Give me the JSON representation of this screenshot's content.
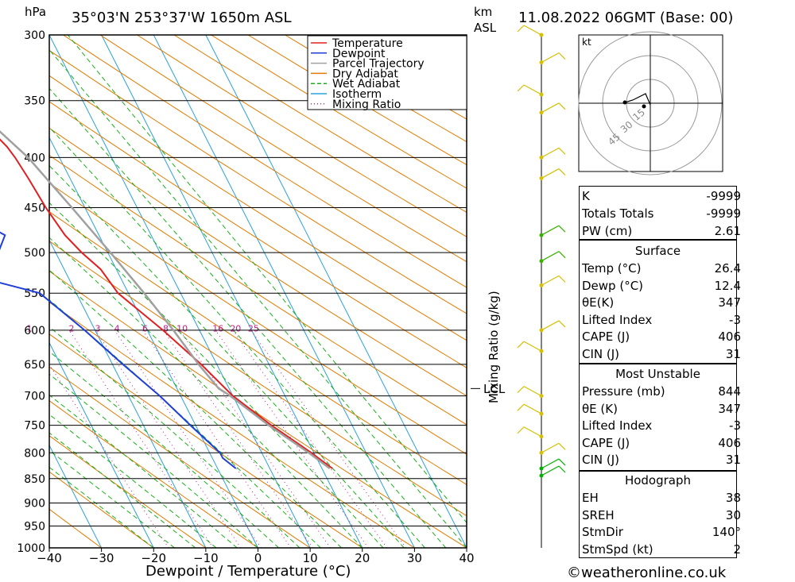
{
  "header": {
    "units_hpa": "hPa",
    "location": "35°03'N 253°37'W 1650m ASL",
    "units_km": "km",
    "units_asl": "ASL",
    "valid_time": "11.08.2022 06GMT (Base: 00)"
  },
  "chart_data": {
    "type": "line",
    "subtype": "skew-t log-p",
    "xlabel": "Dewpoint / Temperature (°C)",
    "ylabel": "hPa",
    "right_axis_label": "Mixing Ratio (g/kg)",
    "xlim": [
      -40,
      40
    ],
    "ylim": [
      1000,
      300
    ],
    "y_scale": "log",
    "x_ticks": [
      -40,
      -30,
      -20,
      -10,
      0,
      10,
      20,
      30,
      40
    ],
    "x_tick_labels": [
      "−40",
      "−30",
      "−20",
      "−10",
      "0",
      "10",
      "20",
      "30",
      "40"
    ],
    "pressure_levels": [
      300,
      350,
      400,
      450,
      500,
      550,
      600,
      650,
      700,
      750,
      800,
      850,
      900,
      950,
      1000
    ],
    "pressure_labels": [
      "300",
      "350",
      "400",
      "450",
      "500",
      "550",
      "600",
      "650",
      "700",
      "750",
      "800",
      "850",
      "900",
      "950",
      "1000"
    ],
    "mixing_ratio_labels": [
      "1",
      "2",
      "3",
      "4",
      "6",
      "8",
      "10",
      "16",
      "20",
      "25"
    ],
    "lcl_label": "LCL",
    "legend": {
      "placement": "top-center",
      "entries": [
        {
          "name": "Temperature",
          "color": "#e02020"
        },
        {
          "name": "Dewpoint",
          "color": "#1f3fd6"
        },
        {
          "name": "Parcel Trajectory",
          "color": "#a0a0a0"
        },
        {
          "name": "Dry Adiabat",
          "color": "#e07b00"
        },
        {
          "name": "Wet Adiabat",
          "color": "#18b018"
        },
        {
          "name": "Isotherm",
          "color": "#2aa0e0"
        },
        {
          "name": "Mixing Ratio",
          "color": "#c0208a"
        }
      ]
    },
    "series": [
      {
        "name": "Temperature",
        "color": "#e02020",
        "points": [
          [
            300,
            -21
          ],
          [
            310,
            -19
          ],
          [
            320,
            -17
          ],
          [
            330,
            -15
          ],
          [
            340,
            -14
          ],
          [
            350,
            -13
          ],
          [
            370,
            -11
          ],
          [
            390,
            -9
          ],
          [
            400,
            -8.5
          ],
          [
            420,
            -8
          ],
          [
            450,
            -7.5
          ],
          [
            480,
            -6.5
          ],
          [
            500,
            -5
          ],
          [
            520,
            -3
          ],
          [
            550,
            -2
          ],
          [
            600,
            3
          ],
          [
            650,
            7
          ],
          [
            700,
            10
          ],
          [
            750,
            14.5
          ],
          [
            800,
            19.5
          ],
          [
            830,
            22
          ]
        ]
      },
      {
        "name": "Dewpoint",
        "color": "#1f3fd6",
        "points": [
          [
            300,
            -27
          ],
          [
            310,
            -31
          ],
          [
            325,
            -23
          ],
          [
            335,
            -29
          ],
          [
            350,
            -22
          ],
          [
            360,
            -26
          ],
          [
            380,
            -20
          ],
          [
            400,
            -18
          ],
          [
            430,
            -28
          ],
          [
            450,
            -25
          ],
          [
            480,
            -18
          ],
          [
            500,
            -21
          ],
          [
            530,
            -27
          ],
          [
            550,
            -17
          ],
          [
            600,
            -12
          ],
          [
            650,
            -8
          ],
          [
            700,
            -4
          ],
          [
            750,
            -1
          ],
          [
            800,
            2
          ],
          [
            810,
            2
          ],
          [
            830,
            3.5
          ]
        ]
      },
      {
        "name": "Parcel Trajectory",
        "color": "#a0a0a0",
        "points": [
          [
            360,
            -11
          ],
          [
            400,
            -6
          ],
          [
            450,
            -2.5
          ],
          [
            500,
            0.5
          ],
          [
            550,
            3
          ],
          [
            600,
            5
          ],
          [
            650,
            6.5
          ],
          [
            688,
            8
          ],
          [
            700,
            9.5
          ],
          [
            750,
            14
          ],
          [
            800,
            19
          ],
          [
            830,
            21.5
          ]
        ]
      }
    ]
  },
  "hodograph": {
    "units": "kt",
    "ring_labels": [
      "15",
      "30",
      "45"
    ]
  },
  "indices": {
    "general": [
      {
        "label": "K",
        "value": "-9999"
      },
      {
        "label": "Totals Totals",
        "value": "-9999"
      },
      {
        "label": "PW (cm)",
        "value": "2.61"
      }
    ],
    "surface_title": "Surface",
    "surface": [
      {
        "label": "Temp (°C)",
        "value": "26.4"
      },
      {
        "label": "Dewp (°C)",
        "value": "12.4"
      },
      {
        "label": "θE(K)",
        "value": "347"
      },
      {
        "label": "Lifted Index",
        "value": "-3"
      },
      {
        "label": "CAPE (J)",
        "value": "406"
      },
      {
        "label": "CIN (J)",
        "value": "31"
      }
    ],
    "most_unstable_title": "Most Unstable",
    "most_unstable": [
      {
        "label": "Pressure (mb)",
        "value": "844"
      },
      {
        "label": "θE (K)",
        "value": "347"
      },
      {
        "label": "Lifted Index",
        "value": "-3"
      },
      {
        "label": "CAPE (J)",
        "value": "406"
      },
      {
        "label": "CIN (J)",
        "value": "31"
      }
    ],
    "hodograph_title": "Hodograph",
    "hodograph": [
      {
        "label": "EH",
        "value": "38"
      },
      {
        "label": "SREH",
        "value": "30"
      },
      {
        "label": "StmDir",
        "value": "140°"
      },
      {
        "label": "StmSpd (kt)",
        "value": "2"
      }
    ]
  },
  "footer": {
    "credit": "©weatheronline.co.uk"
  }
}
